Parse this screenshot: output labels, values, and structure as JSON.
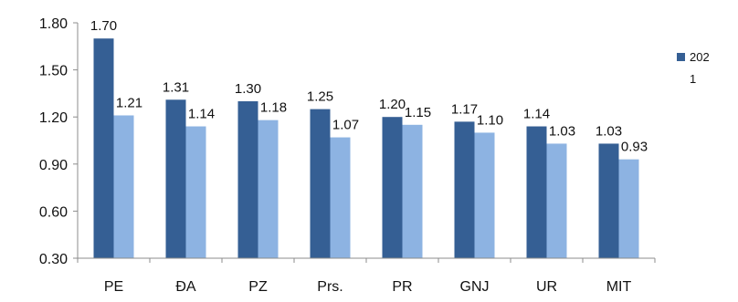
{
  "chart_data": {
    "type": "bar",
    "categories": [
      "PE",
      "ĐA",
      "PZ",
      "Prs.",
      "PR",
      "GNJ",
      "UR",
      "MIT"
    ],
    "series": [
      {
        "name": "2021",
        "color": "#355f94",
        "values": [
          1.7,
          1.31,
          1.3,
          1.25,
          1.2,
          1.17,
          1.14,
          1.03
        ]
      },
      {
        "color": "#8db3e2",
        "values": [
          1.21,
          1.14,
          1.18,
          1.07,
          1.15,
          1.1,
          1.03,
          0.93
        ]
      }
    ],
    "data_labels": [
      [
        "1.70",
        "1.31",
        "1.30",
        "1.25",
        "1.20",
        "1.17",
        "1.14",
        "1.03"
      ],
      [
        "1.21",
        "1.14",
        "1.18",
        "1.07",
        "1.15",
        "1.10",
        "1.03",
        "0.93"
      ]
    ],
    "yticks": [
      "1.80",
      "1.50",
      "1.20",
      "0.90",
      "0.60",
      "0.30"
    ],
    "ylim": [
      0.3,
      1.8
    ],
    "grid": false,
    "legend": {
      "position": "right",
      "line1": "202",
      "line2": "1"
    }
  }
}
